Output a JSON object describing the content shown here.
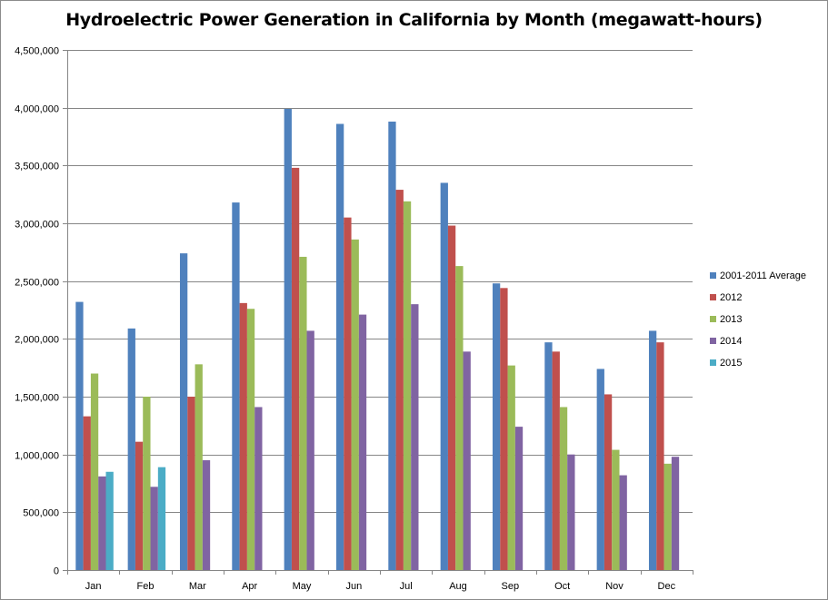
{
  "chart_data": {
    "type": "bar",
    "title": "Hydroelectric Power Generation in California by Month (megawatt-hours)",
    "xlabel": "",
    "ylabel": "",
    "ylim": [
      0,
      4500000
    ],
    "yticks": [
      "0",
      "500,000",
      "1,000,000",
      "1,500,000",
      "2,000,000",
      "2,500,000",
      "3,000,000",
      "3,500,000",
      "4,000,000",
      "4,500,000"
    ],
    "ytick_values": [
      0,
      500000,
      1000000,
      1500000,
      2000000,
      2500000,
      3000000,
      3500000,
      4000000,
      4500000
    ],
    "grid": true,
    "legend_position": "right",
    "categories": [
      "Jan",
      "Feb",
      "Mar",
      "Apr",
      "May",
      "Jun",
      "Jul",
      "Aug",
      "Sep",
      "Oct",
      "Nov",
      "Dec"
    ],
    "series": [
      {
        "name": "2001-2011 Average",
        "color": "#4f81bd",
        "values": [
          2320000,
          2090000,
          2740000,
          3180000,
          3990000,
          3860000,
          3880000,
          3350000,
          2480000,
          1970000,
          1740000,
          2070000
        ]
      },
      {
        "name": "2012",
        "color": "#c0504d",
        "values": [
          1330000,
          1110000,
          1500000,
          2310000,
          3480000,
          3050000,
          3290000,
          2980000,
          2440000,
          1890000,
          1520000,
          1970000
        ]
      },
      {
        "name": "2013",
        "color": "#9bbb59",
        "values": [
          1700000,
          1500000,
          1780000,
          2260000,
          2710000,
          2860000,
          3190000,
          2630000,
          1770000,
          1410000,
          1040000,
          920000
        ]
      },
      {
        "name": "2014",
        "color": "#8064a2",
        "values": [
          810000,
          720000,
          950000,
          1410000,
          2070000,
          2210000,
          2300000,
          1890000,
          1240000,
          1000000,
          820000,
          980000
        ]
      },
      {
        "name": "2015",
        "color": "#4bacc6",
        "values": [
          850000,
          890000,
          null,
          null,
          null,
          null,
          null,
          null,
          null,
          null,
          null,
          null
        ]
      }
    ]
  }
}
